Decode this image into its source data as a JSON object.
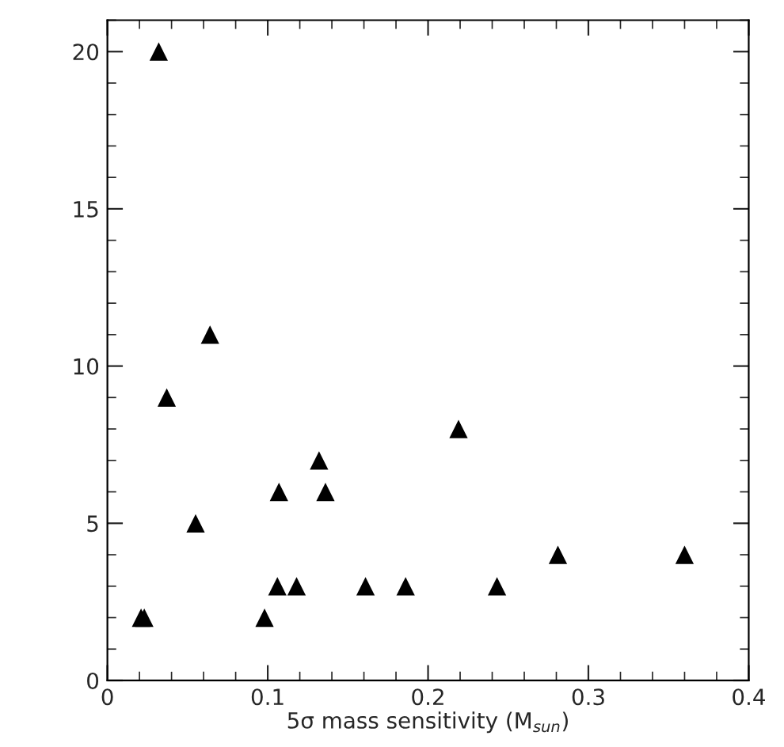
{
  "chart_data": {
    "type": "scatter",
    "xlabel": "5σ mass sensitivity (M$_{sun}$)",
    "x": [
      0.021,
      0.023,
      0.032,
      0.037,
      0.055,
      0.064,
      0.098,
      0.106,
      0.107,
      0.118,
      0.132,
      0.136,
      0.161,
      0.186,
      0.219,
      0.243,
      0.281,
      0.36
    ],
    "series": [
      {
        "color": "#000000",
        "values": [
          2,
          2,
          20,
          9,
          5,
          11,
          2,
          3,
          6,
          3,
          7,
          6,
          3,
          3,
          8,
          3,
          4,
          4
        ]
      }
    ],
    "marker": "triangle",
    "xlim": [
      0,
      0.4
    ],
    "xticks": [
      0,
      0.1,
      0.2,
      0.3,
      0.4
    ],
    "ylim": [
      0,
      21
    ],
    "yticks": [
      0,
      5,
      10,
      15,
      20
    ],
    "grid": false,
    "legend": false
  }
}
